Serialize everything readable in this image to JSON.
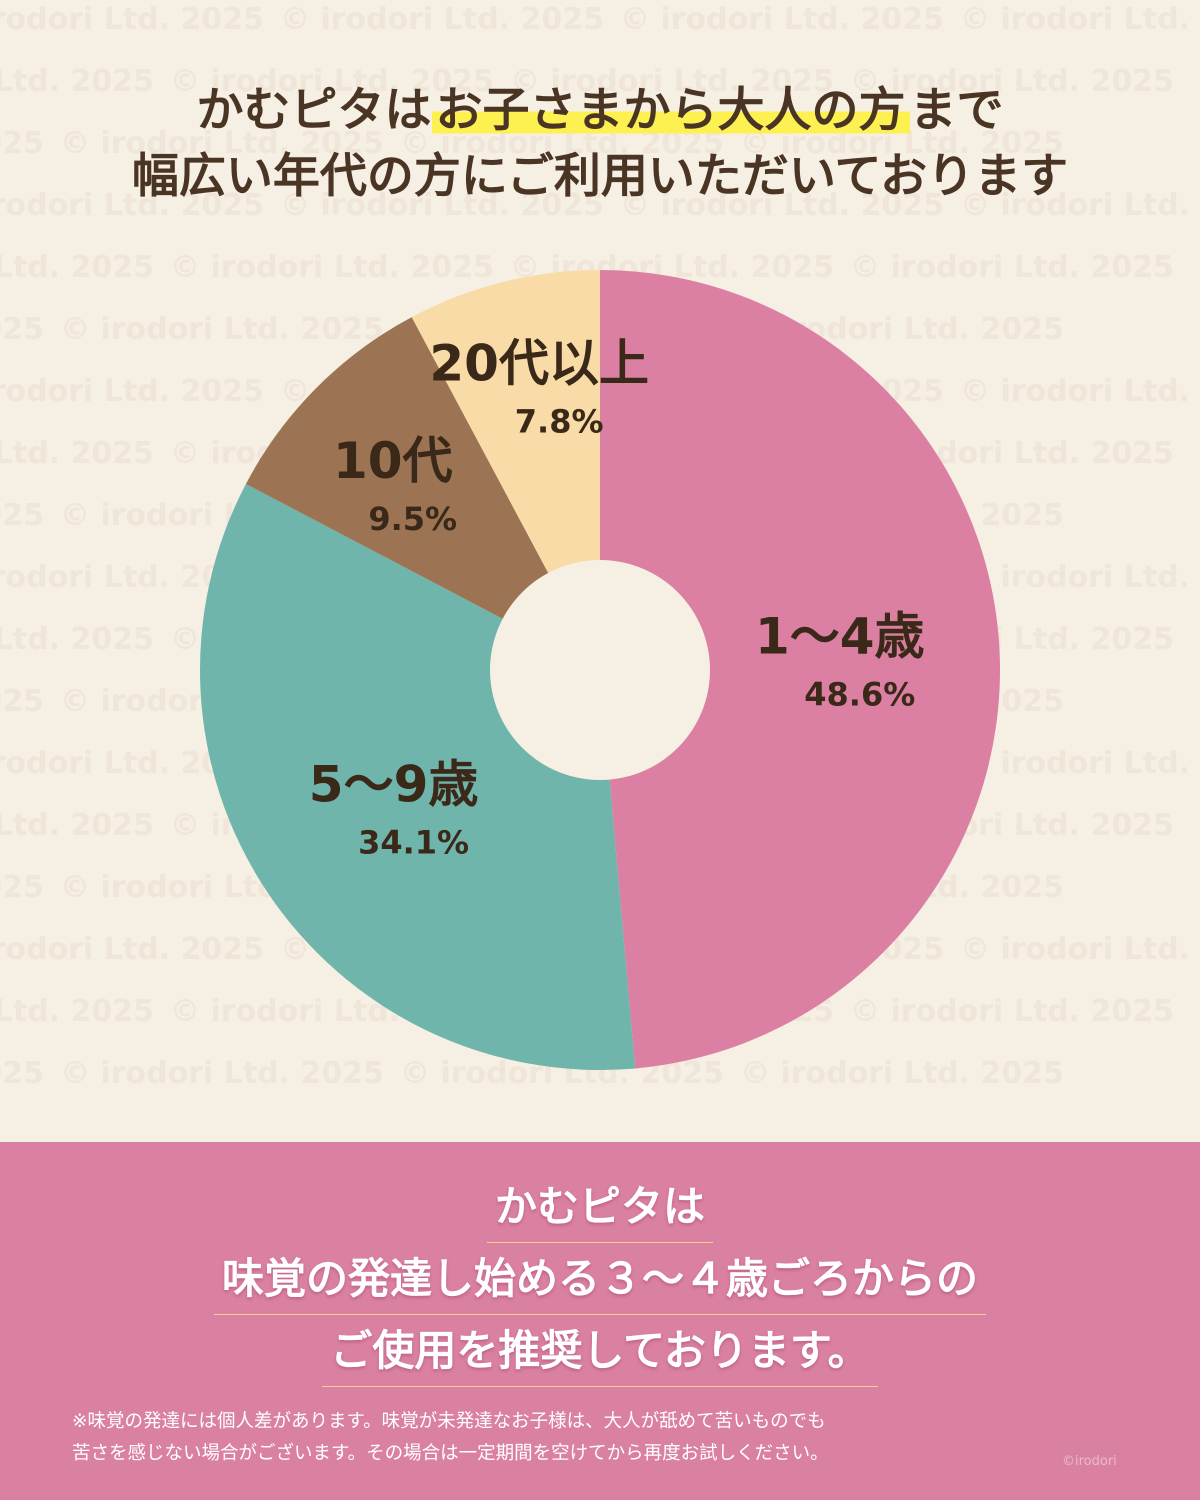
{
  "headline": {
    "line1_before": "かむピタは",
    "line1_highlight": "お子さまから大人の方",
    "line1_after": "まで",
    "line2": "幅広い年代の方にご利用いただいております"
  },
  "watermark": "© irodori Ltd. 2025",
  "colors": {
    "background": "#f6efe3",
    "text_brown": "#4a3424",
    "highlight_yellow": "#fdf151",
    "band_pink": "#da80a3"
  },
  "chart_data": {
    "type": "pie",
    "style": "donut",
    "start_angle_deg": 0,
    "direction": "clockwise",
    "slices": [
      {
        "label": "1〜4歳",
        "value": 48.6,
        "percent_text": "48.6%",
        "color": "#db80a2"
      },
      {
        "label": "5〜9歳",
        "value": 34.1,
        "percent_text": "34.1%",
        "color": "#6fb5ab"
      },
      {
        "label": "10代",
        "value": 9.5,
        "percent_text": "9.5%",
        "color": "#9c7454"
      },
      {
        "label": "20代以上",
        "value": 7.8,
        "percent_text": "7.8%",
        "color": "#f8dba6"
      }
    ]
  },
  "footer": {
    "lines": [
      "かむピタは",
      "味覚の発達し始める３〜４歳ごろからの",
      "ご使用を推奨しております。"
    ],
    "note_lines": [
      "※味覚の発達には個人差があります。味覚が未発達なお子様は、大人が舐めて苦いものでも",
      "苦さを感じない場合がございます。その場合は一定期間を空けてから再度お試しください。"
    ],
    "credit": "©irodori"
  }
}
